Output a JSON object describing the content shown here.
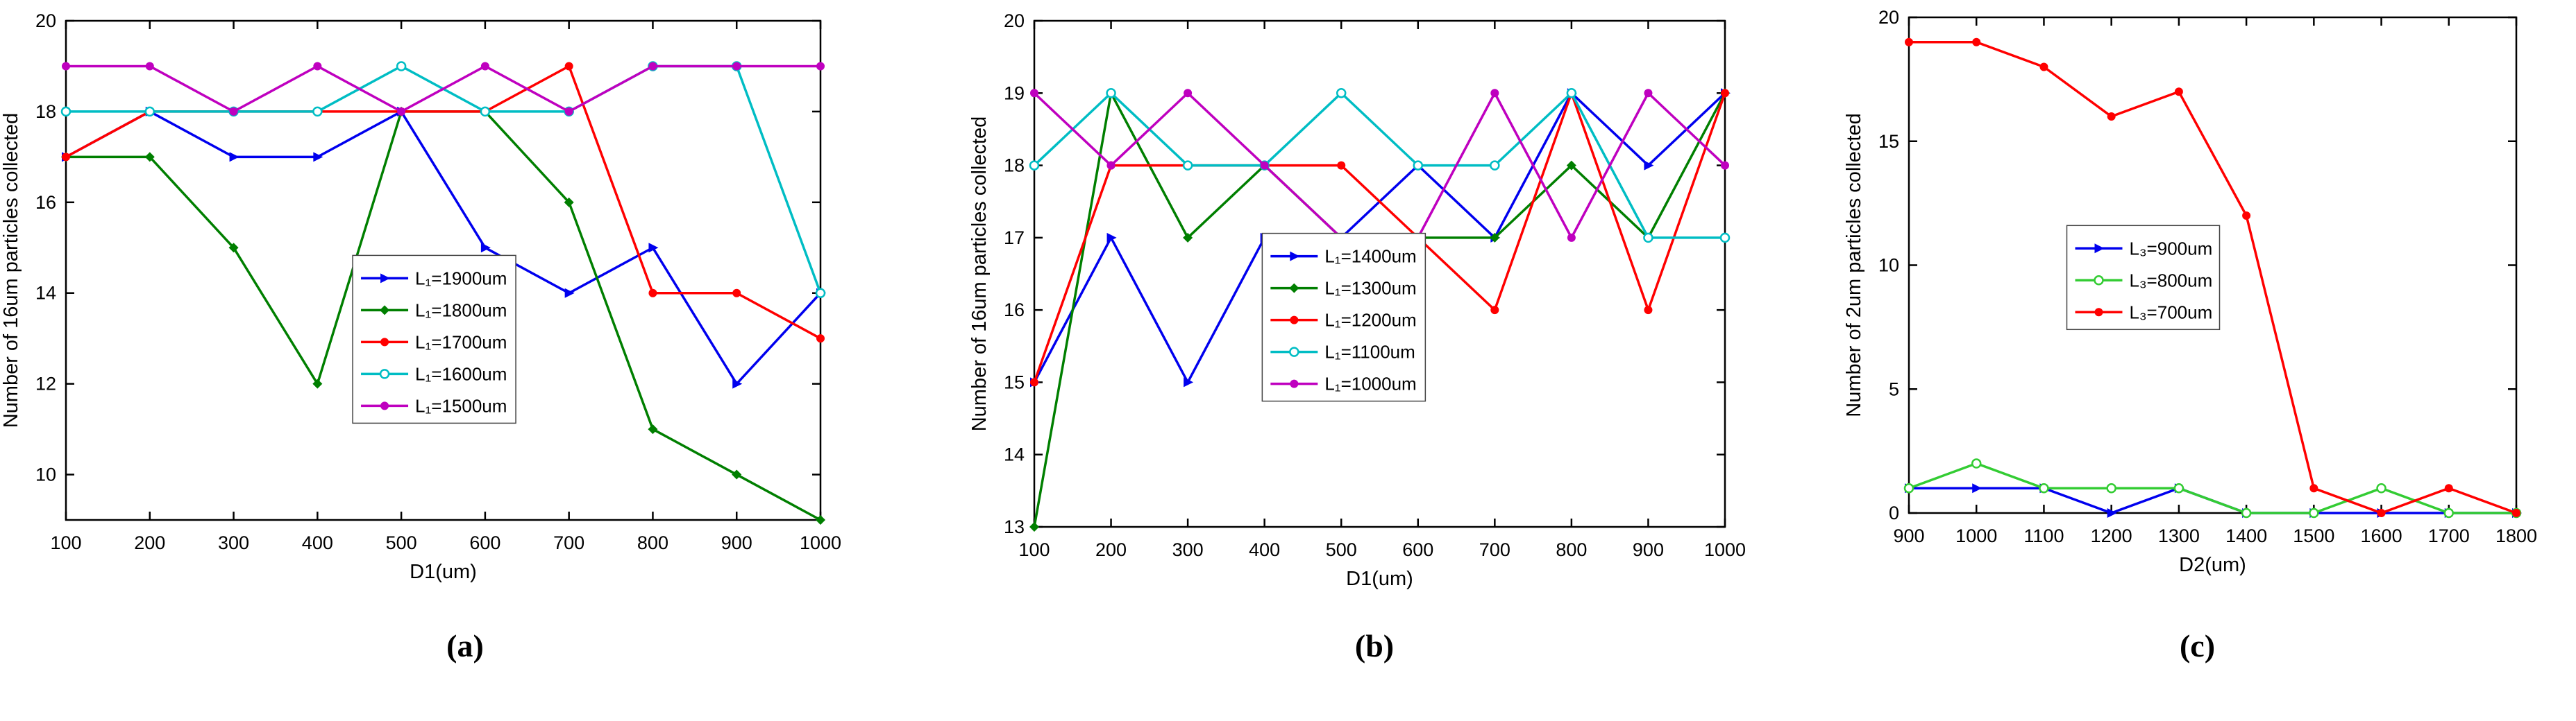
{
  "figure": {
    "captions": [
      "(a)",
      "(b)",
      "(c)"
    ]
  },
  "chart_data": [
    {
      "type": "line",
      "title": "",
      "xlabel": "D1(um)",
      "ylabel": "Number of 16um particles collected",
      "xlim": [
        100,
        1000
      ],
      "ylim": [
        9,
        20
      ],
      "xticks": [
        100,
        200,
        300,
        400,
        500,
        600,
        700,
        800,
        900,
        1000
      ],
      "yticks": [
        10,
        12,
        14,
        16,
        18,
        20
      ],
      "x": [
        100,
        200,
        300,
        400,
        500,
        600,
        700,
        800,
        900,
        1000
      ],
      "grid": false,
      "legend_pos": {
        "x": 0.38,
        "y": 0.47
      },
      "series": [
        {
          "name": "L₁=1900um",
          "color": "#0000EE",
          "marker": "triangle",
          "values": [
            17,
            18,
            17,
            17,
            18,
            15,
            14,
            15,
            12,
            14
          ]
        },
        {
          "name": "L₁=1800um",
          "color": "#007F00",
          "marker": "diamond",
          "values": [
            17,
            17,
            15,
            12,
            18,
            18,
            16,
            11,
            10,
            9
          ]
        },
        {
          "name": "L₁=1700um",
          "color": "#FF0000",
          "marker": "circle",
          "values": [
            17,
            18,
            18,
            18,
            18,
            18,
            19,
            14,
            14,
            13
          ]
        },
        {
          "name": "L₁=1600um",
          "color": "#00BDC4",
          "marker": "circle-open",
          "values": [
            18,
            18,
            18,
            18,
            19,
            18,
            18,
            19,
            19,
            14
          ]
        },
        {
          "name": "L₁=1500um",
          "color": "#BF00BF",
          "marker": "circle",
          "values": [
            19,
            19,
            18,
            19,
            18,
            19,
            18,
            19,
            19,
            19
          ]
        }
      ]
    },
    {
      "type": "line",
      "title": "",
      "xlabel": "D1(um)",
      "ylabel": "Number of 16um particles collected",
      "xlim": [
        100,
        1000
      ],
      "ylim": [
        13,
        20
      ],
      "xticks": [
        100,
        200,
        300,
        400,
        500,
        600,
        700,
        800,
        900,
        1000
      ],
      "yticks": [
        13,
        14,
        15,
        16,
        17,
        18,
        19,
        20
      ],
      "x": [
        100,
        200,
        300,
        400,
        500,
        600,
        700,
        800,
        900,
        1000
      ],
      "grid": false,
      "legend_pos": {
        "x": 0.33,
        "y": 0.42
      },
      "series": [
        {
          "name": "L₁=1400um",
          "color": "#0000EE",
          "marker": "triangle",
          "values": [
            15,
            17,
            15,
            17,
            17,
            18,
            17,
            19,
            18,
            19
          ]
        },
        {
          "name": "L₁=1300um",
          "color": "#007F00",
          "marker": "diamond",
          "values": [
            13,
            19,
            17,
            18,
            17,
            17,
            17,
            18,
            17,
            19
          ]
        },
        {
          "name": "L₁=1200um",
          "color": "#FF0000",
          "marker": "circle",
          "values": [
            15,
            18,
            18,
            18,
            18,
            17,
            16,
            19,
            16,
            19
          ]
        },
        {
          "name": "L₁=1100um",
          "color": "#00BDC4",
          "marker": "circle-open",
          "values": [
            18,
            19,
            18,
            18,
            19,
            18,
            18,
            19,
            17,
            17
          ]
        },
        {
          "name": "L₁=1000um",
          "color": "#BF00BF",
          "marker": "circle",
          "values": [
            19,
            18,
            19,
            18,
            17,
            17,
            19,
            17,
            19,
            18
          ]
        }
      ]
    },
    {
      "type": "line",
      "title": "",
      "xlabel": "D2(um)",
      "ylabel": "Number of 2um particles collected",
      "xlim": [
        900,
        1800
      ],
      "ylim": [
        0,
        20
      ],
      "xticks": [
        900,
        1000,
        1100,
        1200,
        1300,
        1400,
        1500,
        1600,
        1700,
        1800
      ],
      "yticks": [
        0,
        5,
        10,
        15,
        20
      ],
      "x": [
        900,
        1000,
        1100,
        1200,
        1300,
        1400,
        1500,
        1600,
        1700,
        1800
      ],
      "grid": false,
      "legend_pos": {
        "x": 0.26,
        "y": 0.42
      },
      "series": [
        {
          "name": "L₃=900um",
          "color": "#0000EE",
          "marker": "triangle",
          "values": [
            1,
            1,
            1,
            0,
            1,
            0,
            0,
            0,
            0,
            0
          ]
        },
        {
          "name": "L₃=800um",
          "color": "#33CC33",
          "marker": "circle-open",
          "values": [
            1,
            2,
            1,
            1,
            1,
            0,
            0,
            1,
            0,
            0
          ]
        },
        {
          "name": "L₃=700um",
          "color": "#FF0000",
          "marker": "circle",
          "values": [
            19,
            19,
            18,
            16,
            17,
            12,
            1,
            0,
            1,
            0
          ]
        }
      ]
    }
  ]
}
